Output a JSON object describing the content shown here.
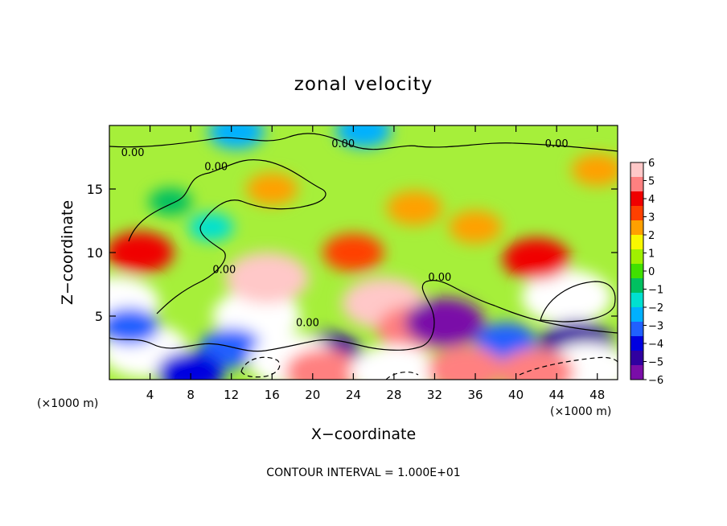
{
  "chart_data": {
    "type": "heatmap",
    "title": "zonal velocity",
    "xlabel": "X−coordinate",
    "ylabel": "Z−coordinate",
    "x_unit_left": "(×1000 m)",
    "x_unit_right": "(×1000 m)",
    "footer": "CONTOUR INTERVAL = 1.000E+01",
    "xlim": [
      0,
      50
    ],
    "ylim": [
      0,
      20
    ],
    "x_ticks": [
      4,
      8,
      12,
      16,
      20,
      24,
      28,
      32,
      36,
      40,
      44,
      48
    ],
    "y_ticks": [
      5,
      10,
      15
    ],
    "contour_label": "0.00",
    "colorbar": {
      "min": -6,
      "max": 6,
      "ticks": [
        6,
        5,
        4,
        3,
        2,
        1,
        0,
        -1,
        -2,
        -3,
        -4,
        -5,
        -6
      ],
      "tick_labels": [
        "6",
        "5",
        "4",
        "3",
        "2",
        "1",
        "0",
        "−1",
        "−2",
        "−3",
        "−4",
        "−5",
        "−6"
      ],
      "colors": [
        "#7a0da8",
        "#3000a0",
        "#0000e0",
        "#2060ff",
        "#00b0ff",
        "#00e0d0",
        "#00c060",
        "#40e000",
        "#a0f000",
        "#f8f800",
        "#ffa000",
        "#ff4000",
        "#f00000",
        "#ff8080",
        "#ffc8c8"
      ]
    },
    "contour_label_points": [
      {
        "x": 2.3,
        "z": 17.6
      },
      {
        "x": 10.5,
        "z": 16.5
      },
      {
        "x": 23.0,
        "z": 18.3
      },
      {
        "x": 44.0,
        "z": 18.3
      },
      {
        "x": 11.3,
        "z": 8.4
      },
      {
        "x": 19.5,
        "z": 4.2
      },
      {
        "x": 32.5,
        "z": 7.8
      }
    ],
    "features": [
      {
        "x": 3.0,
        "z": 10.0,
        "value": 4.0
      },
      {
        "x": 0.6,
        "z": 6.0,
        "value": 6.5
      },
      {
        "x": 3.5,
        "z": 2.3,
        "value": 6.5
      },
      {
        "x": 14.5,
        "z": 5.0,
        "value": 6.5
      },
      {
        "x": 15.5,
        "z": 8.0,
        "value": 6.0
      },
      {
        "x": 27.0,
        "z": 6.0,
        "value": 6.0
      },
      {
        "x": 30.0,
        "z": 4.0,
        "value": 5.0
      },
      {
        "x": 45.0,
        "z": 6.5,
        "value": 6.8
      },
      {
        "x": 42.0,
        "z": 9.5,
        "value": 4.0
      },
      {
        "x": 24.0,
        "z": 10.0,
        "value": 3.2
      },
      {
        "x": 30.0,
        "z": 13.5,
        "value": 2.5
      },
      {
        "x": 36.0,
        "z": 12.0,
        "value": 2.2
      },
      {
        "x": 16.0,
        "z": 15.0,
        "value": 2.0
      },
      {
        "x": 48.0,
        "z": 16.5,
        "value": 2.0
      },
      {
        "x": 6.0,
        "z": 14.0,
        "value": -1.0
      },
      {
        "x": 10.0,
        "z": 12.0,
        "value": -1.2
      },
      {
        "x": 12.5,
        "z": 19.5,
        "value": -2.5
      },
      {
        "x": 25.0,
        "z": 19.6,
        "value": -2.5
      },
      {
        "x": 2.0,
        "z": 4.2,
        "value": -3.0
      },
      {
        "x": 12.0,
        "z": 2.5,
        "value": -3.5
      },
      {
        "x": 21.5,
        "z": 2.0,
        "value": -4.5
      },
      {
        "x": 33.0,
        "z": 4.5,
        "value": -5.5
      },
      {
        "x": 39.0,
        "z": 3.0,
        "value": -3.2
      },
      {
        "x": 46.0,
        "z": 2.8,
        "value": -5.0
      },
      {
        "x": 8.0,
        "z": 0.6,
        "value": -4.0
      },
      {
        "x": 18.0,
        "z": 1.5,
        "value": 6.5
      },
      {
        "x": 21.0,
        "z": 0.6,
        "value": 5.0
      },
      {
        "x": 28.0,
        "z": 0.6,
        "value": 6.5
      },
      {
        "x": 35.0,
        "z": 0.8,
        "value": 5.0
      },
      {
        "x": 47.0,
        "z": 0.8,
        "value": 6.5
      },
      {
        "x": 42.0,
        "z": 0.6,
        "value": 5.0
      }
    ]
  }
}
